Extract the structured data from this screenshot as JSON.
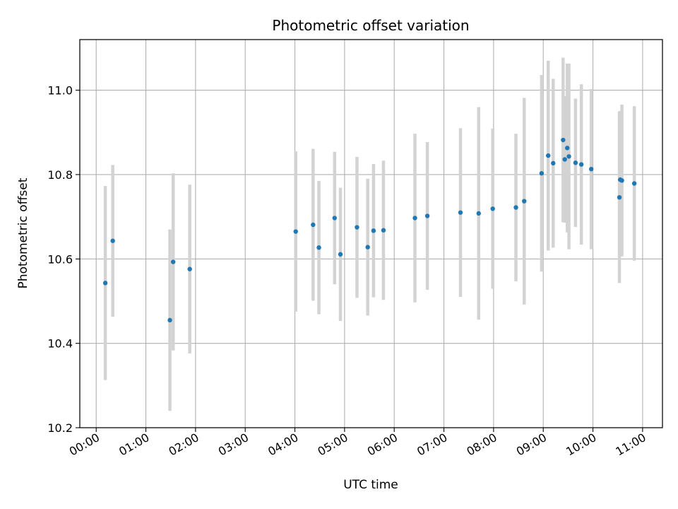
{
  "chart_data": {
    "type": "scatter",
    "title": "Photometric offset variation",
    "xlabel": "UTC time",
    "ylabel": "Photometric offset",
    "xlim_hours": [
      -0.33,
      11.4
    ],
    "ylim": [
      10.2,
      11.12
    ],
    "x_ticks": [
      "00:00",
      "01:00",
      "02:00",
      "03:00",
      "04:00",
      "05:00",
      "06:00",
      "07:00",
      "08:00",
      "09:00",
      "10:00",
      "11:00"
    ],
    "y_ticks": [
      "10.2",
      "10.4",
      "10.6",
      "10.8",
      "11.0"
    ],
    "grid": true,
    "colors": {
      "point": "#1f77b4",
      "errorbar": "#d3d3d3",
      "grid": "#b0b0b0"
    },
    "points": [
      {
        "time": "00:11",
        "y": 10.543,
        "err": 0.23
      },
      {
        "time": "00:20",
        "y": 10.643,
        "err": 0.18
      },
      {
        "time": "01:29",
        "y": 10.455,
        "err": 0.215
      },
      {
        "time": "01:33",
        "y": 10.593,
        "err": 0.21
      },
      {
        "time": "01:53",
        "y": 10.576,
        "err": 0.2
      },
      {
        "time": "04:01",
        "y": 10.665,
        "err": 0.19
      },
      {
        "time": "04:22",
        "y": 10.681,
        "err": 0.18
      },
      {
        "time": "04:29",
        "y": 10.627,
        "err": 0.158
      },
      {
        "time": "04:48",
        "y": 10.697,
        "err": 0.157
      },
      {
        "time": "04:55",
        "y": 10.611,
        "err": 0.158
      },
      {
        "time": "05:15",
        "y": 10.675,
        "err": 0.167
      },
      {
        "time": "05:28",
        "y": 10.628,
        "err": 0.162
      },
      {
        "time": "05:35",
        "y": 10.667,
        "err": 0.158
      },
      {
        "time": "05:47",
        "y": 10.668,
        "err": 0.165
      },
      {
        "time": "06:25",
        "y": 10.697,
        "err": 0.2
      },
      {
        "time": "06:40",
        "y": 10.702,
        "err": 0.175
      },
      {
        "time": "07:20",
        "y": 10.71,
        "err": 0.2
      },
      {
        "time": "07:42",
        "y": 10.708,
        "err": 0.252
      },
      {
        "time": "07:59",
        "y": 10.719,
        "err": 0.19
      },
      {
        "time": "08:27",
        "y": 10.722,
        "err": 0.175
      },
      {
        "time": "08:37",
        "y": 10.737,
        "err": 0.245
      },
      {
        "time": "08:58",
        "y": 10.803,
        "err": 0.233
      },
      {
        "time": "09:06",
        "y": 10.845,
        "err": 0.225
      },
      {
        "time": "09:12",
        "y": 10.827,
        "err": 0.2
      },
      {
        "time": "09:24",
        "y": 10.882,
        "err": 0.195
      },
      {
        "time": "09:26",
        "y": 10.836,
        "err": 0.15
      },
      {
        "time": "09:29",
        "y": 10.863,
        "err": 0.2
      },
      {
        "time": "09:31",
        "y": 10.843,
        "err": 0.22
      },
      {
        "time": "09:39",
        "y": 10.828,
        "err": 0.152
      },
      {
        "time": "09:46",
        "y": 10.824,
        "err": 0.19
      },
      {
        "time": "09:58",
        "y": 10.813,
        "err": 0.19
      },
      {
        "time": "10:32",
        "y": 10.746,
        "err": 0.203
      },
      {
        "time": "10:33",
        "y": 10.788,
        "err": 0.163
      },
      {
        "time": "10:35",
        "y": 10.786,
        "err": 0.18
      },
      {
        "time": "10:50",
        "y": 10.779,
        "err": 0.183
      }
    ]
  }
}
